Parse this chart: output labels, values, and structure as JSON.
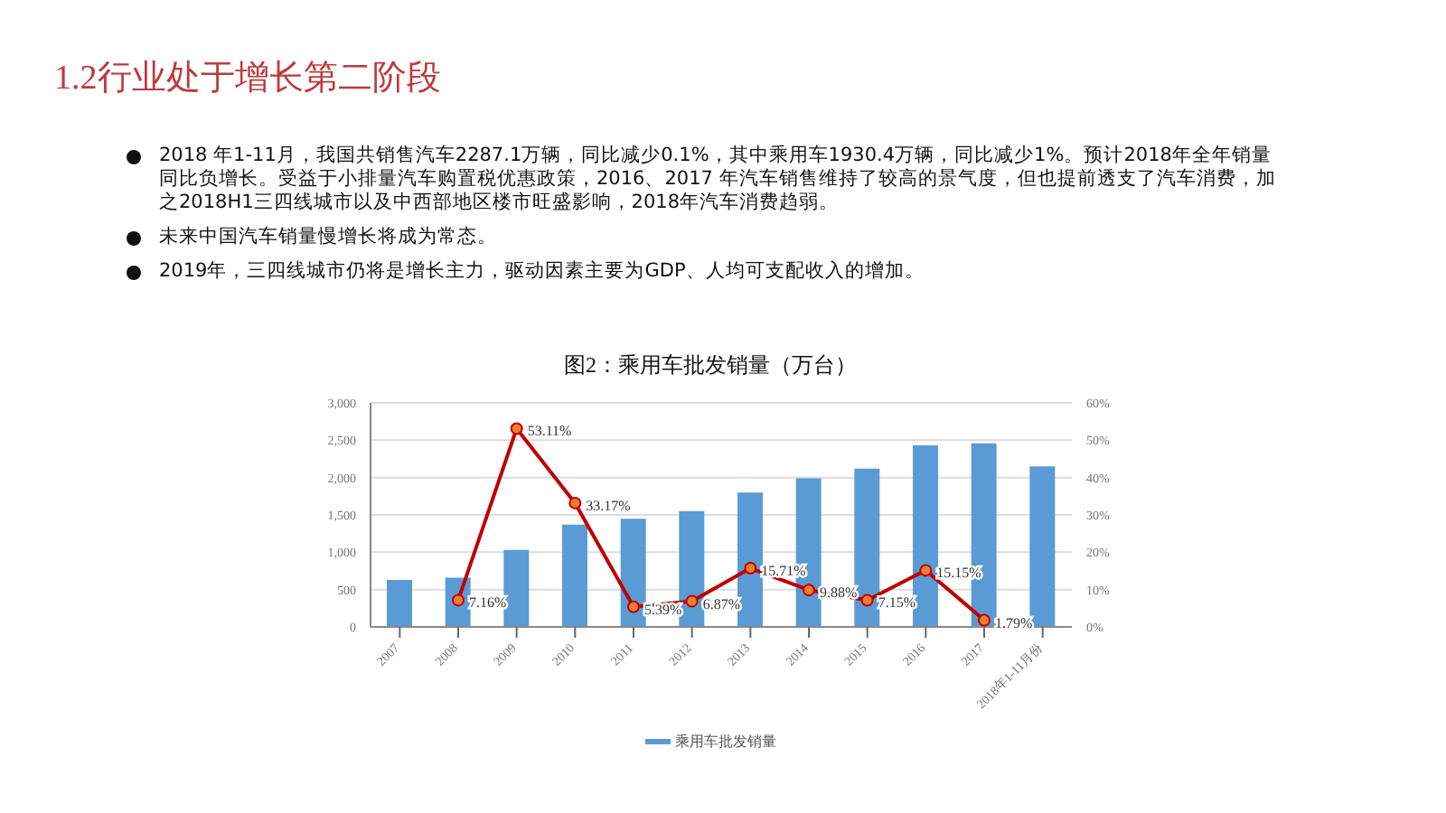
{
  "chart_data": {
    "type": "bar",
    "title": "1.2行业处于增长第二阶段",
    "subtitle": "图2：乘用车批发销量（万台）",
    "annotations": [
      "2018 年1-11月，我国共销售汽车2287.1万辆，同比减少0.1%，其中乘用车1930.4万辆，同比减少1%。预计2018年全年销量同比负增长。受益于小排量汽车购置税优惠政策，2016、2017 年汽车销售维持了较高的景气度，但也提前透支了汽车消费，加之2018H1三四线城市以及中西部地区楼市旺盛影响，2018年汽车消费趋弱。",
      "未来中国汽车销量慢增长将成为常态。",
      "2019年，三四线城市仍将是增长主力，驱动因素主要为GDP、人均可支配收入的增加。"
    ],
    "categories": [
      "2007",
      "2008",
      "2009",
      "2010",
      "2011",
      "2012",
      "2013",
      "2014",
      "2015",
      "2016",
      "2017",
      "2018年1-11月份"
    ],
    "series": [
      {
        "name": "乘用车批发销量",
        "color": "#5b9bd5",
        "values": [
          630,
          660,
          1030,
          1370,
          1450,
          1550,
          1800,
          1990,
          2120,
          2430,
          2460,
          2150
        ]
      },
      {
        "type": "line",
        "color": "#c00000",
        "axis": "y2",
        "marker": "circle",
        "values": [
          null,
          7.16,
          53.11,
          33.17,
          5.39,
          6.87,
          15.71,
          9.88,
          7.15,
          15.15,
          1.79,
          null
        ],
        "value_labels": [
          null,
          "7.16%",
          "53.11%",
          "33.17%",
          "5.39%",
          "6.87%",
          "15.71%",
          "9.88%",
          "7.15%",
          "15.15%",
          "1.79%",
          null
        ]
      }
    ],
    "ylim": [
      0,
      3000
    ],
    "yticks": [
      0,
      {
        "value": 500,
        "label": "500"
      },
      {
        "value": 1000,
        "label": "1,000"
      },
      {
        "value": 1500,
        "label": "1,500"
      },
      {
        "value": 2000,
        "label": "2,000"
      },
      {
        "value": 2500,
        "label": "2,500"
      },
      {
        "value": 3000,
        "label": "3,000"
      }
    ],
    "y2lim": [
      0,
      60
    ],
    "y2ticks": [
      {
        "value": 0,
        "label": "0%"
      },
      {
        "value": 10,
        "label": "10%"
      },
      {
        "value": 20,
        "label": "20%"
      },
      {
        "value": 30,
        "label": "30%"
      },
      {
        "value": 40,
        "label": "40%"
      },
      {
        "value": 50,
        "label": "50%"
      },
      {
        "value": 60,
        "label": "60%"
      }
    ],
    "grid": "y",
    "legend": "bottom"
  }
}
